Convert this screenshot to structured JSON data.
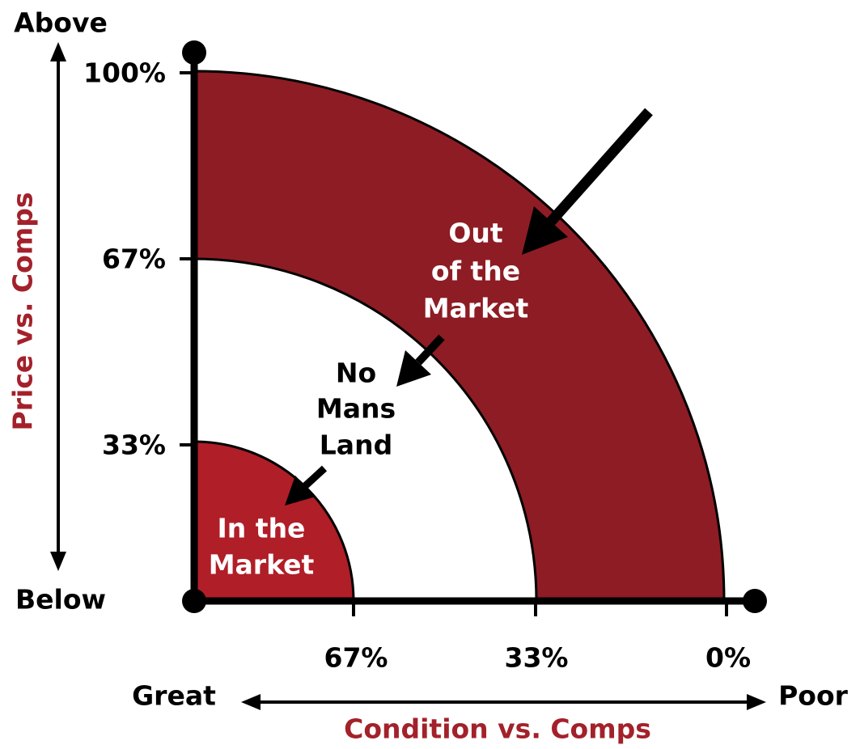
{
  "y_axis": {
    "top_label": "Above",
    "bottom_label": "Below",
    "title": "Price vs. Comps",
    "ticks": [
      "100%",
      "67%",
      "33%"
    ]
  },
  "x_axis": {
    "left_label": "Great",
    "right_label": "Poor",
    "title": "Condition vs. Comps",
    "ticks": [
      "67%",
      "33%",
      "0%"
    ]
  },
  "regions": [
    {
      "label": [
        "Out",
        "of the",
        "Market"
      ]
    },
    {
      "label": [
        "No",
        "Mans",
        "Land"
      ]
    },
    {
      "label": [
        "In the",
        "Market"
      ]
    }
  ]
}
